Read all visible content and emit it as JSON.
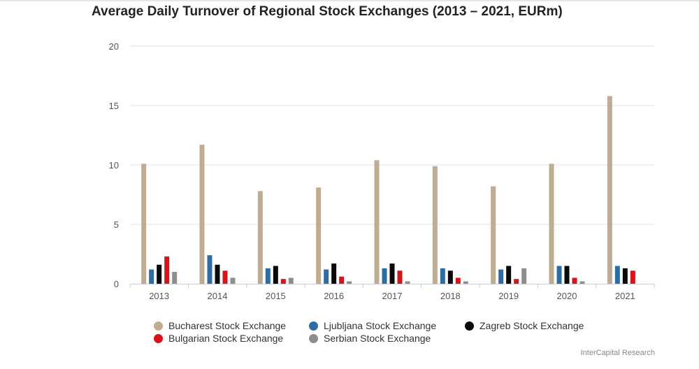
{
  "chart_data": {
    "type": "bar",
    "title": "Average Daily Turnover of Regional Stock Exchanges (2013 – 2021, EURm)",
    "xlabel": "",
    "ylabel": "",
    "ylim": [
      0,
      20
    ],
    "yticks": [
      "0",
      "5",
      "10",
      "15",
      "20"
    ],
    "grid": true,
    "legend_position": "bottom",
    "categories": [
      "2013",
      "2014",
      "2015",
      "2016",
      "2017",
      "2018",
      "2019",
      "2020",
      "2021"
    ],
    "series": [
      {
        "name": "Bucharest Stock Exchange",
        "color": "#bfad92",
        "values": [
          10.1,
          11.7,
          7.8,
          8.1,
          10.4,
          9.9,
          8.2,
          10.1,
          15.8
        ]
      },
      {
        "name": "Ljubljana Stock Exchange",
        "color": "#2e6da4",
        "values": [
          1.2,
          2.4,
          1.3,
          1.2,
          1.3,
          1.3,
          1.2,
          1.5,
          1.5
        ]
      },
      {
        "name": "Zagreb Stock Exchange",
        "color": "#0a0a0a",
        "values": [
          1.6,
          1.6,
          1.5,
          1.7,
          1.7,
          1.1,
          1.5,
          1.5,
          1.3
        ]
      },
      {
        "name": "Bulgarian Stock Exchange",
        "color": "#d7141a",
        "values": [
          2.3,
          1.1,
          0.4,
          0.6,
          1.1,
          0.5,
          0.4,
          0.5,
          1.1
        ]
      },
      {
        "name": "Serbian Stock Exchange",
        "color": "#8e8e8e",
        "values": [
          1.0,
          0.5,
          0.5,
          0.2,
          0.2,
          0.2,
          1.3,
          0.2,
          null
        ]
      }
    ]
  },
  "credit": "InterCapital Research"
}
